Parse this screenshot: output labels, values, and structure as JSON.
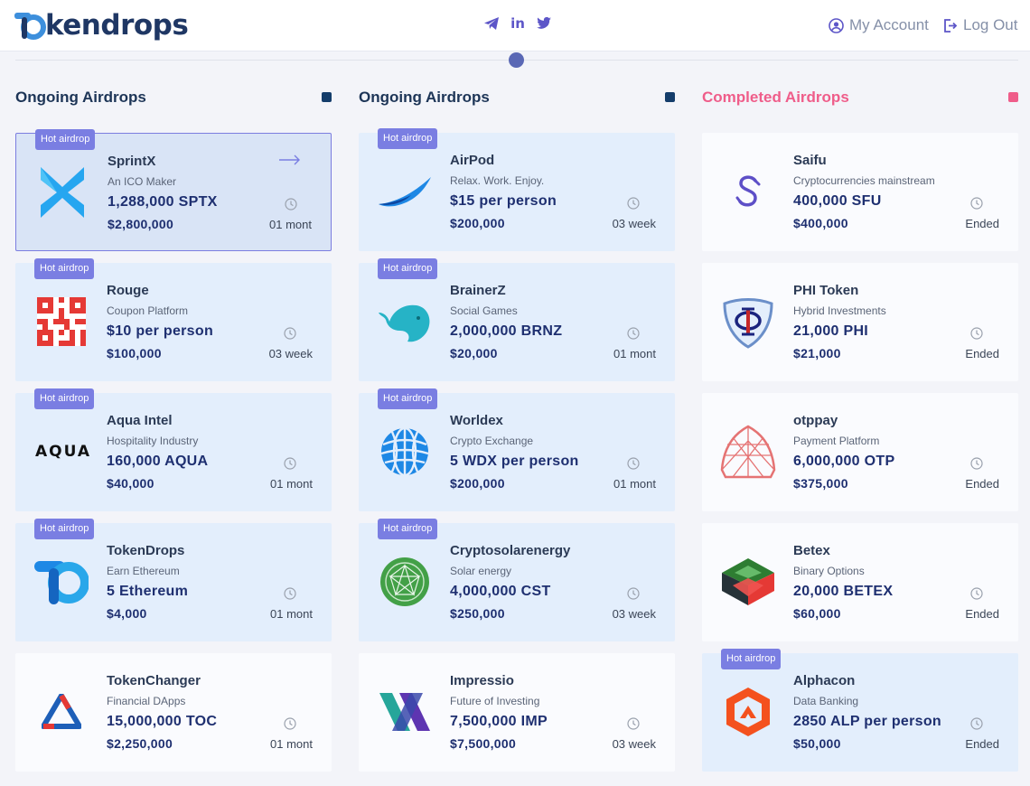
{
  "brand": {
    "name": "kendrops"
  },
  "header": {
    "account_label": "My Account",
    "logout_label": "Log Out",
    "social": [
      "telegram-icon",
      "linkedin-icon",
      "twitter-icon"
    ],
    "linkedin_glyph": "in"
  },
  "colors": {
    "accent": "#7a7ee2",
    "completed": "#ef5d8a",
    "dark": "#1e2f70"
  },
  "columns": [
    {
      "title": "Ongoing Airdrops",
      "cards": [
        {
          "badge": "Hot airdrop",
          "name": "SprintX",
          "tagline": "An ICO Maker",
          "amount": "1,288,000 SPTX",
          "value": "$2,800,000",
          "time": "01 mont"
        },
        {
          "badge": "Hot airdrop",
          "name": "Rouge",
          "tagline": "Coupon Platform",
          "amount": "$10 per person",
          "value": "$100,000",
          "time": "03 week"
        },
        {
          "badge": "Hot airdrop",
          "name": "Aqua Intel",
          "tagline": "Hospitality Industry",
          "amount": "160,000 AQUA",
          "value": "$40,000",
          "time": "01 mont",
          "logo_text": "AQUA"
        },
        {
          "badge": "Hot airdrop",
          "name": "TokenDrops",
          "tagline": "Earn Ethereum",
          "amount": "5 Ethereum",
          "value": "$4,000",
          "time": "01 mont"
        },
        {
          "badge": "",
          "name": "TokenChanger",
          "tagline": "Financial DApps",
          "amount": "15,000,000 TOC",
          "value": "$2,250,000",
          "time": "01 mont"
        }
      ]
    },
    {
      "title": "Ongoing Airdrops",
      "cards": [
        {
          "badge": "Hot airdrop",
          "name": "AirPod",
          "tagline": "Relax. Work. Enjoy.",
          "amount": "$15 per person",
          "value": "$200,000",
          "time": "03 week"
        },
        {
          "badge": "Hot airdrop",
          "name": "BrainerZ",
          "tagline": "Social Games",
          "amount": "2,000,000 BRNZ",
          "value": "$20,000",
          "time": "01 mont"
        },
        {
          "badge": "Hot airdrop",
          "name": "Worldex",
          "tagline": "Crypto Exchange",
          "amount": "5 WDX per person",
          "value": "$200,000",
          "time": "01 mont"
        },
        {
          "badge": "Hot airdrop",
          "name": "Cryptosolarenergy",
          "tagline": "Solar energy",
          "amount": "4,000,000 CST",
          "value": "$250,000",
          "time": "03 week"
        },
        {
          "badge": "",
          "name": "Impressio",
          "tagline": "Future of Investing",
          "amount": "7,500,000 IMP",
          "value": "$7,500,000",
          "time": "03 week"
        }
      ]
    },
    {
      "title": "Completed Airdrops",
      "cards": [
        {
          "badge": "",
          "name": "Saifu",
          "tagline": "Cryptocurrencies mainstream",
          "amount": "400,000 SFU",
          "value": "$400,000",
          "time": "Ended"
        },
        {
          "badge": "",
          "name": "PHI Token",
          "tagline": "Hybrid Investments",
          "amount": "21,000 PHI",
          "value": "$21,000",
          "time": "Ended"
        },
        {
          "badge": "",
          "name": "otppay",
          "tagline": "Payment Platform",
          "amount": "6,000,000 OTP",
          "value": "$375,000",
          "time": "Ended"
        },
        {
          "badge": "",
          "name": "Betex",
          "tagline": "Binary Options",
          "amount": "20,000 BETEX",
          "value": "$60,000",
          "time": "Ended"
        },
        {
          "badge": "Hot airdrop",
          "name": "Alphacon",
          "tagline": "Data Banking",
          "amount": "2850 ALP per person",
          "value": "$50,000",
          "time": "Ended"
        }
      ]
    }
  ]
}
